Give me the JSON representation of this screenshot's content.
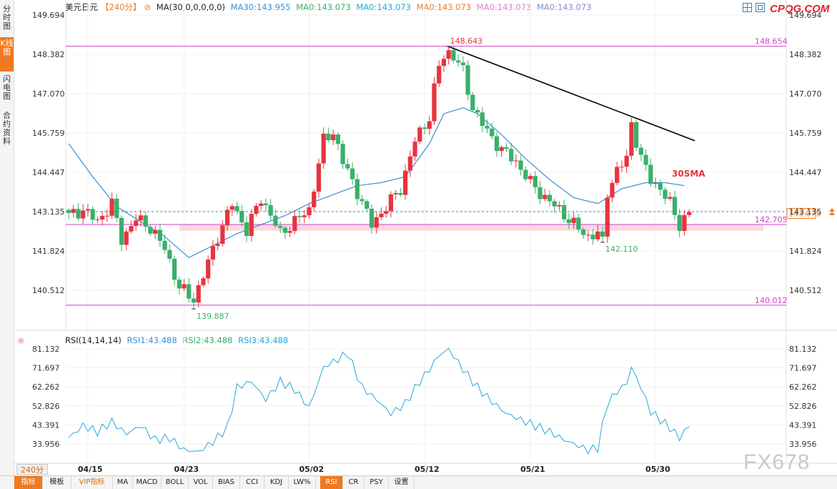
{
  "left_tabs": [
    "分时图",
    "K线图",
    "闪电图",
    "合约资料"
  ],
  "legend": {
    "symbol": "美元日元",
    "period": "【240分】",
    "ma_label": "MA(30,0,0,0,0,0)",
    "items": [
      "MA30:143.955",
      "MA0:143.073",
      "MA0:143.073",
      "MA0:143.073",
      "MA0:143.073",
      "MA0:143.073"
    ]
  },
  "brand": "CPQG.COM",
  "watermark": "FX678",
  "period_selector": "240分 ▲",
  "toolbar": [
    "指标",
    "模板",
    "VIP指标",
    "MA",
    "MACD",
    "BOLL",
    "VOL",
    "BIAS",
    "CCI",
    "KDJ",
    "LW%",
    "RSI",
    "CR",
    "PSY",
    "设置"
  ],
  "rsi_legend": {
    "label": "RSI(14,14,14)",
    "items": [
      "RSI1:43.488",
      "RSI2:43.488",
      "RSI3:43.488"
    ]
  },
  "colors": {
    "up": "#e8343e",
    "down": "#38b06a",
    "ma30": "#3a8fd8",
    "rsi": "#28a7d8",
    "level_line": "#d040c8",
    "trendline": "#000000",
    "price_line": "#3a7fc8",
    "annotation_red": "#e8343e",
    "annotation_green": "#38b06a",
    "accent": "#f07a20"
  },
  "chart_data": [
    {
      "type": "candlestick",
      "title": "",
      "y_axis": {
        "range": [
          139.7,
          150.0
        ],
        "ticks": [
          "149.694",
          "148.382",
          "147.070",
          "145.759",
          "144.447",
          "143.135",
          "141.824",
          "140.512"
        ]
      },
      "x_axis": {
        "ticks": [
          "04/15",
          "04/23",
          "05/02",
          "05/12",
          "05/21",
          "05/30"
        ]
      },
      "grid": true,
      "horizontal_levels": [
        {
          "value": 148.654,
          "label": "148.654"
        },
        {
          "value": 142.705,
          "label": "142.705"
        },
        {
          "value": 140.012,
          "label": "140.012"
        }
      ],
      "current_price": {
        "value": 143.075,
        "label": "143.075",
        "ref_line": 143.135
      },
      "support_zone": [
        142.5,
        142.7
      ],
      "annotations": {
        "high": "148.643",
        "low_left": "139.887",
        "low_right": "142.110",
        "ma_text": "30SMA"
      },
      "close_path": [
        [
          0,
          143.0
        ],
        [
          3,
          143.2
        ],
        [
          6,
          142.8
        ],
        [
          9,
          143.4
        ],
        [
          11,
          142.2
        ],
        [
          14,
          142.9
        ],
        [
          17,
          142.6
        ],
        [
          20,
          141.9
        ],
        [
          23,
          140.6
        ],
        [
          26,
          140.2
        ],
        [
          28,
          141.0
        ],
        [
          31,
          142.3
        ],
        [
          34,
          143.4
        ],
        [
          37,
          142.5
        ],
        [
          40,
          143.6
        ],
        [
          44,
          142.4
        ],
        [
          47,
          142.8
        ],
        [
          50,
          143.2
        ],
        [
          53,
          145.5
        ],
        [
          55,
          145.8
        ],
        [
          57,
          144.8
        ],
        [
          60,
          143.8
        ],
        [
          63,
          142.7
        ],
        [
          66,
          143.3
        ],
        [
          69,
          143.9
        ],
        [
          72,
          145.5
        ],
        [
          75,
          146.3
        ],
        [
          76,
          147.2
        ],
        [
          77,
          148.0
        ],
        [
          79,
          148.6
        ],
        [
          82,
          147.8
        ],
        [
          84,
          146.6
        ],
        [
          87,
          145.8
        ],
        [
          90,
          145.2
        ],
        [
          93,
          144.8
        ],
        [
          96,
          144.1
        ],
        [
          99,
          143.6
        ],
        [
          102,
          143.2
        ],
        [
          105,
          142.7
        ],
        [
          108,
          142.3
        ],
        [
          110,
          142.4
        ],
        [
          112,
          143.8
        ],
        [
          114,
          144.5
        ],
        [
          116,
          144.9
        ],
        [
          117,
          146.1
        ],
        [
          119,
          144.9
        ],
        [
          121,
          144.2
        ],
        [
          123,
          143.9
        ],
        [
          125,
          143.4
        ],
        [
          127,
          142.7
        ],
        [
          129,
          143.1
        ]
      ],
      "ma30_series": [
        [
          0,
          145.4
        ],
        [
          5,
          144.3
        ],
        [
          10,
          143.3
        ],
        [
          15,
          142.8
        ],
        [
          20,
          142.3
        ],
        [
          25,
          141.6
        ],
        [
          30,
          142.0
        ],
        [
          35,
          142.4
        ],
        [
          40,
          142.7
        ],
        [
          45,
          143.0
        ],
        [
          50,
          143.4
        ],
        [
          55,
          143.7
        ],
        [
          60,
          144.0
        ],
        [
          65,
          144.1
        ],
        [
          70,
          144.3
        ],
        [
          75,
          145.4
        ],
        [
          78,
          146.4
        ],
        [
          82,
          146.6
        ],
        [
          85,
          146.4
        ],
        [
          90,
          145.7
        ],
        [
          95,
          144.9
        ],
        [
          100,
          144.2
        ],
        [
          105,
          143.6
        ],
        [
          110,
          143.4
        ],
        [
          115,
          143.9
        ],
        [
          120,
          144.1
        ],
        [
          124,
          144.1
        ],
        [
          128,
          144.0
        ]
      ],
      "trendline": [
        [
          79,
          148.64
        ],
        [
          129,
          145.5
        ]
      ],
      "bars": 130
    },
    {
      "type": "line",
      "title": "",
      "y_axis": {
        "range": [
          27,
          86
        ],
        "ticks": [
          "81.132",
          "71.697",
          "62.262",
          "52.826",
          "43.391",
          "33.956"
        ]
      },
      "series": [
        {
          "name": "RSI1",
          "values": [
            [
              0,
              37
            ],
            [
              3,
              43
            ],
            [
              6,
              40
            ],
            [
              9,
              45
            ],
            [
              12,
              39
            ],
            [
              15,
              43
            ],
            [
              18,
              36
            ],
            [
              21,
              37
            ],
            [
              24,
              31
            ],
            [
              27,
              30
            ],
            [
              30,
              35
            ],
            [
              33,
              42
            ],
            [
              35,
              62
            ],
            [
              38,
              65
            ],
            [
              41,
              56
            ],
            [
              44,
              65
            ],
            [
              47,
              61
            ],
            [
              50,
              52
            ],
            [
              53,
              72
            ],
            [
              56,
              76
            ],
            [
              58,
              79
            ],
            [
              61,
              62
            ],
            [
              64,
              56
            ],
            [
              67,
              49
            ],
            [
              70,
              54
            ],
            [
              73,
              65
            ],
            [
              75,
              71
            ],
            [
              77,
              78
            ],
            [
              79,
              81
            ],
            [
              82,
              71
            ],
            [
              85,
              62
            ],
            [
              88,
              55
            ],
            [
              91,
              49
            ],
            [
              94,
              46
            ],
            [
              97,
              43
            ],
            [
              100,
              40
            ],
            [
              103,
              36
            ],
            [
              106,
              33
            ],
            [
              108,
              31
            ],
            [
              110,
              32
            ],
            [
              112,
              54
            ],
            [
              114,
              60
            ],
            [
              116,
              64
            ],
            [
              117,
              72
            ],
            [
              119,
              62
            ],
            [
              121,
              50
            ],
            [
              123,
              46
            ],
            [
              125,
              42
            ],
            [
              127,
              37
            ],
            [
              129,
              43
            ]
          ]
        }
      ]
    }
  ]
}
